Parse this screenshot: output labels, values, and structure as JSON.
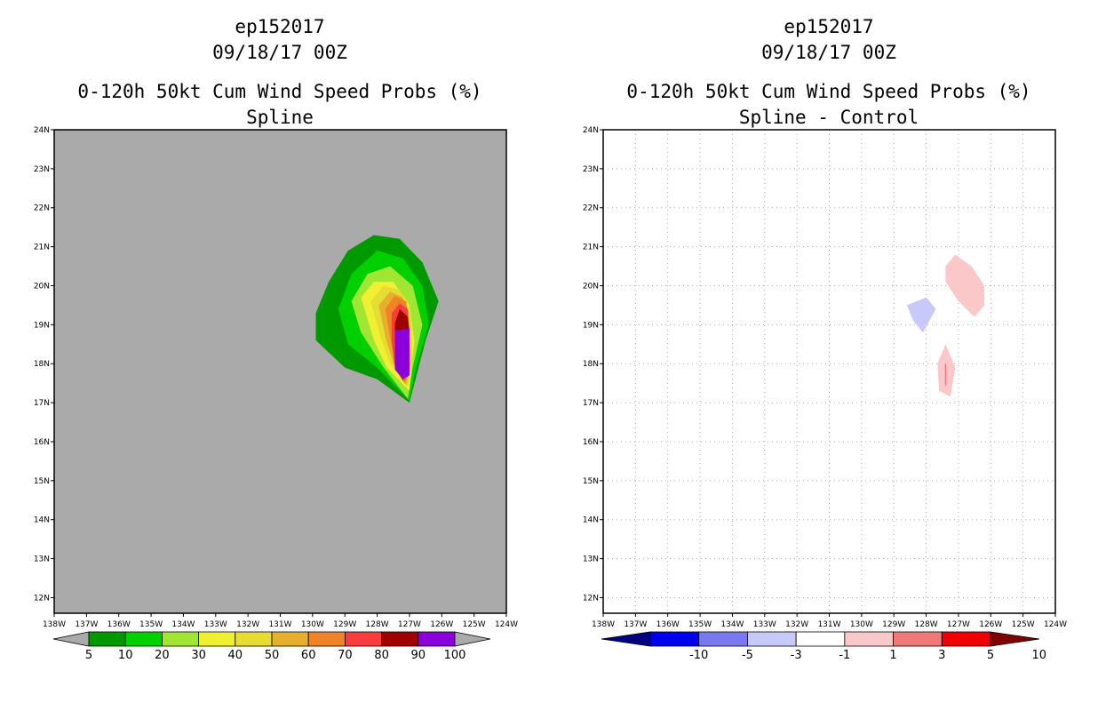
{
  "left_panel": {
    "storm": "ep152017",
    "datetime": "09/18/17 00Z",
    "title": "0-120h 50kt Cum Wind Speed Probs (%)",
    "subtitle": "Spline"
  },
  "right_panel": {
    "storm": "ep152017",
    "datetime": "09/18/17 00Z",
    "title": "0-120h 50kt Cum Wind Speed Probs (%)",
    "subtitle": "Spline - Control"
  },
  "chart_data": [
    {
      "type": "heatmap",
      "title": "0-120h 50kt Cum Wind Speed Probs (%)",
      "subtitle": "Spline",
      "x_ticks": [
        "138W",
        "137W",
        "136W",
        "135W",
        "134W",
        "133W",
        "132W",
        "131W",
        "130W",
        "129W",
        "128W",
        "127W",
        "126W",
        "125W",
        "124W"
      ],
      "y_ticks": [
        "12N",
        "13N",
        "14N",
        "15N",
        "16N",
        "17N",
        "18N",
        "19N",
        "20N",
        "21N",
        "22N",
        "23N",
        "24N"
      ],
      "xlim": [
        -138,
        -124
      ],
      "ylim": [
        11.6,
        24
      ],
      "background_color": "#aaaaaa",
      "grid": false,
      "legend": {
        "labels": [
          "5",
          "10",
          "20",
          "30",
          "40",
          "50",
          "60",
          "70",
          "80",
          "90",
          "100"
        ],
        "colors": [
          "#009900",
          "#00d000",
          "#a0e632",
          "#f0f032",
          "#e6dc32",
          "#e6af2d",
          "#f08228",
          "#fa3c3c",
          "#a00000",
          "#8c00dc"
        ]
      },
      "contours": [
        {
          "level": "5",
          "color": "#009900",
          "points": [
            [
              -129.9,
              18.6
            ],
            [
              -129.9,
              19.3
            ],
            [
              -129.5,
              20.1
            ],
            [
              -128.9,
              20.9
            ],
            [
              -128.1,
              21.3
            ],
            [
              -127.3,
              21.2
            ],
            [
              -126.6,
              20.6
            ],
            [
              -126.1,
              19.6
            ],
            [
              -126.5,
              18.6
            ],
            [
              -127.0,
              17.0
            ],
            [
              -128.0,
              17.6
            ],
            [
              -129.0,
              17.9
            ]
          ]
        },
        {
          "level": "10",
          "color": "#00d000",
          "points": [
            [
              -129.2,
              19.4
            ],
            [
              -128.8,
              20.3
            ],
            [
              -128.0,
              20.9
            ],
            [
              -127.2,
              20.7
            ],
            [
              -126.6,
              20.0
            ],
            [
              -126.4,
              19.0
            ],
            [
              -126.8,
              17.9
            ],
            [
              -127.0,
              17.05
            ],
            [
              -128.0,
              17.9
            ],
            [
              -128.9,
              18.5
            ]
          ]
        },
        {
          "level": "20",
          "color": "#a0e632",
          "points": [
            [
              -128.8,
              19.6
            ],
            [
              -128.3,
              20.3
            ],
            [
              -127.6,
              20.5
            ],
            [
              -126.9,
              20.0
            ],
            [
              -126.6,
              19.0
            ],
            [
              -126.9,
              17.9
            ],
            [
              -127.05,
              17.1
            ],
            [
              -127.8,
              17.9
            ],
            [
              -128.5,
              18.8
            ]
          ]
        },
        {
          "level": "30",
          "color": "#f0f032",
          "points": [
            [
              -128.5,
              19.7
            ],
            [
              -128.1,
              20.1
            ],
            [
              -127.5,
              20.1
            ],
            [
              -127.0,
              19.5
            ],
            [
              -126.85,
              18.6
            ],
            [
              -127.0,
              17.3
            ],
            [
              -127.7,
              17.9
            ],
            [
              -128.1,
              18.6
            ]
          ]
        },
        {
          "level": "40",
          "color": "#e6dc32",
          "points": [
            [
              -128.2,
              19.6
            ],
            [
              -127.8,
              20.0
            ],
            [
              -127.3,
              19.9
            ],
            [
              -126.95,
              19.2
            ],
            [
              -126.9,
              18.2
            ],
            [
              -127.05,
              17.4
            ],
            [
              -127.6,
              18.0
            ],
            [
              -127.9,
              18.7
            ]
          ]
        },
        {
          "level": "50",
          "color": "#e6af2d",
          "points": [
            [
              -127.95,
              19.5
            ],
            [
              -127.6,
              19.85
            ],
            [
              -127.2,
              19.7
            ],
            [
              -127.0,
              19.0
            ],
            [
              -126.95,
              18.0
            ],
            [
              -127.1,
              17.45
            ],
            [
              -127.5,
              18.0
            ],
            [
              -127.75,
              18.7
            ]
          ]
        },
        {
          "level": "60",
          "color": "#f08228",
          "points": [
            [
              -127.75,
              19.4
            ],
            [
              -127.45,
              19.75
            ],
            [
              -127.1,
              19.6
            ],
            [
              -127.0,
              18.8
            ],
            [
              -127.0,
              17.8
            ],
            [
              -127.15,
              17.5
            ],
            [
              -127.45,
              18.0
            ],
            [
              -127.6,
              18.7
            ]
          ]
        },
        {
          "level": "70",
          "color": "#fa3c3c",
          "points": [
            [
              -127.55,
              19.3
            ],
            [
              -127.3,
              19.55
            ],
            [
              -127.05,
              19.4
            ],
            [
              -127.0,
              18.7
            ],
            [
              -127.0,
              17.8
            ],
            [
              -127.2,
              17.55
            ],
            [
              -127.45,
              17.9
            ],
            [
              -127.55,
              18.6
            ]
          ]
        },
        {
          "level": "80",
          "color": "#a00000",
          "points": [
            [
              -127.45,
              19.05
            ],
            [
              -127.3,
              19.4
            ],
            [
              -127.05,
              19.2
            ],
            [
              -127.0,
              18.8
            ],
            [
              -127.45,
              18.8
            ]
          ]
        },
        {
          "level": "90",
          "color": "#8c00dc",
          "points": [
            [
              -127.45,
              18.85
            ],
            [
              -127.0,
              18.9
            ],
            [
              -127.0,
              17.7
            ],
            [
              -127.2,
              17.6
            ],
            [
              -127.45,
              17.85
            ]
          ]
        }
      ]
    },
    {
      "type": "heatmap",
      "title": "0-120h 50kt Cum Wind Speed Probs (%)",
      "subtitle": "Spline - Control",
      "x_ticks": [
        "138W",
        "137W",
        "136W",
        "135W",
        "134W",
        "133W",
        "132W",
        "131W",
        "130W",
        "129W",
        "128W",
        "127W",
        "126W",
        "125W",
        "124W"
      ],
      "y_ticks": [
        "12N",
        "13N",
        "14N",
        "15N",
        "16N",
        "17N",
        "18N",
        "19N",
        "20N",
        "21N",
        "22N",
        "23N",
        "24N"
      ],
      "xlim": [
        -138,
        -124
      ],
      "ylim": [
        11.6,
        24
      ],
      "background_color": "#ffffff",
      "grid": true,
      "legend": {
        "labels": [
          "-10",
          "-5",
          "-3",
          "-1",
          "1",
          "3",
          "5",
          "10"
        ],
        "colors": [
          "#000080",
          "#0000f0",
          "#7878f0",
          "#c8c8fa",
          "#ffffff",
          "#fac8c8",
          "#f07878",
          "#f00000",
          "#800000"
        ]
      },
      "contours": [
        {
          "level": "1 to 3",
          "color": "#fac8c8",
          "points": [
            [
              -127.4,
              20.5
            ],
            [
              -127.1,
              20.8
            ],
            [
              -126.6,
              20.5
            ],
            [
              -126.2,
              20.0
            ],
            [
              -126.2,
              19.5
            ],
            [
              -126.5,
              19.2
            ],
            [
              -127.0,
              19.6
            ],
            [
              -127.4,
              20.1
            ]
          ]
        },
        {
          "level": "-3 to -1",
          "color": "#c8c8fa",
          "points": [
            [
              -128.6,
              19.5
            ],
            [
              -128.0,
              19.7
            ],
            [
              -127.7,
              19.4
            ],
            [
              -128.1,
              18.8
            ],
            [
              -128.4,
              19.1
            ]
          ]
        },
        {
          "level": "1 to 3",
          "color": "#fac8c8",
          "points": [
            [
              -127.65,
              18.0
            ],
            [
              -127.4,
              18.5
            ],
            [
              -127.1,
              17.9
            ],
            [
              -127.25,
              17.15
            ],
            [
              -127.6,
              17.3
            ]
          ]
        },
        {
          "level": "3 to 5",
          "color": "#f07878",
          "points": [
            [
              -127.42,
              18.0
            ],
            [
              -127.38,
              18.0
            ],
            [
              -127.38,
              17.45
            ],
            [
              -127.42,
              17.45
            ]
          ]
        }
      ]
    }
  ]
}
